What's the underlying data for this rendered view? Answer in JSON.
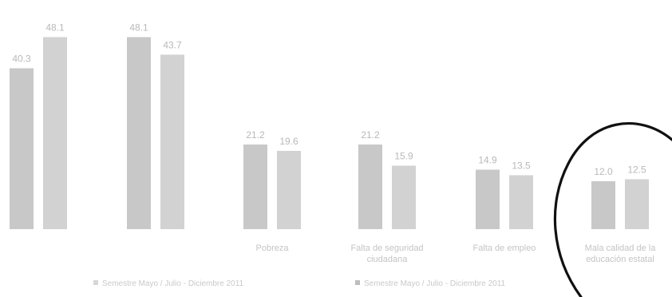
{
  "chart_data": {
    "type": "bar",
    "categories": [
      [
        "",
        ""
      ],
      [
        "",
        ""
      ],
      [
        "Pobreza",
        ""
      ],
      [
        "Falta de seguridad",
        "ciudadana"
      ],
      [
        "Falta de empleo",
        ""
      ],
      [
        "Mala calidad de la",
        "educación estatal"
      ]
    ],
    "series": [
      {
        "name": "Semestre Mayo / Julio - Diciembre 2011",
        "values": [
          40.3,
          48.1,
          21.2,
          21.2,
          14.9,
          12.0
        ],
        "labels": [
          "40.3",
          "48.1",
          "21.2",
          "21.2",
          "14.9",
          "12.0"
        ]
      },
      {
        "name": "Semestre Mayo / Julio - Diciembre 2011",
        "values": [
          48.1,
          43.7,
          19.6,
          15.9,
          13.5,
          12.5
        ],
        "labels": [
          "48.1",
          "43.7",
          "19.6",
          "15.9",
          "13.5",
          "12.5"
        ]
      }
    ],
    "ylim": [
      0,
      50
    ],
    "grid": false,
    "legend_position": "bottom",
    "colors": {
      "bar": "#c8c8c8",
      "bar_light": "#d2d2d2",
      "label": "#b9b9b9",
      "annotation": "#111111"
    },
    "annotation": "hand-drawn circle around the last category"
  }
}
